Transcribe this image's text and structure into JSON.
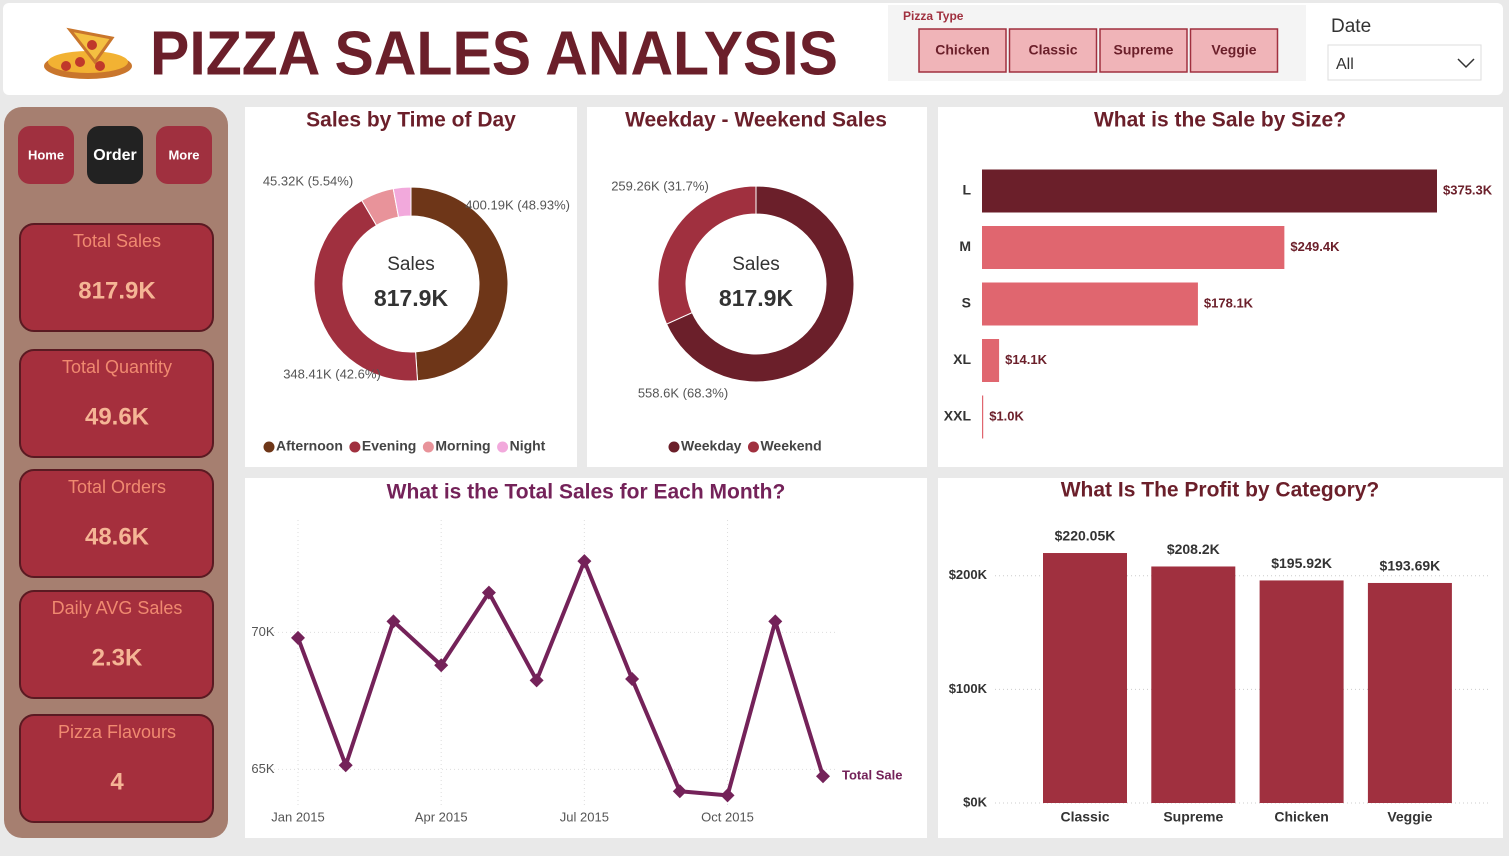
{
  "header": {
    "title": "PIZZA SALES ANALYSIS"
  },
  "filters": {
    "pizza_type": {
      "label": "Pizza Type",
      "options": [
        "Chicken",
        "Classic",
        "Supreme",
        "Veggie"
      ]
    },
    "date": {
      "label": "Date",
      "value": "All"
    }
  },
  "nav": [
    "Home",
    "Order",
    "More"
  ],
  "kpis": [
    {
      "label": "Total Sales",
      "value": "817.9K"
    },
    {
      "label": "Total Quantity",
      "value": "49.6K"
    },
    {
      "label": "Total Orders",
      "value": "48.6K"
    },
    {
      "label": "Daily AVG Sales",
      "value": "2.3K"
    },
    {
      "label": "Pizza Flavours",
      "value": "4"
    }
  ],
  "chart_data": [
    {
      "type": "donut",
      "title": "Sales by Time of Day",
      "center_label": "Sales",
      "center_value": "817.9K",
      "categories": [
        "Afternoon",
        "Evening",
        "Morning",
        "Night"
      ],
      "values": [
        400190,
        348410,
        45320,
        23980
      ],
      "value_labels": [
        "400.19K (48.93%)",
        "348.41K (42.6%)",
        "45.32K (5.54%)",
        null
      ],
      "colors": [
        "#6e3618",
        "#a0303f",
        "#e8939a",
        "#f2a9dc"
      ]
    },
    {
      "type": "donut",
      "title": "Weekday - Weekend Sales",
      "center_label": "Sales",
      "center_value": "817.9K",
      "categories": [
        "Weekday",
        "Weekend"
      ],
      "values": [
        558600,
        259260
      ],
      "value_labels": [
        "558.6K (68.3%)",
        "259.26K (31.7%)"
      ],
      "colors": [
        "#6b1f2a",
        "#a0303f"
      ]
    },
    {
      "type": "hbar",
      "title": "What is the Sale by Size?",
      "categories": [
        "L",
        "M",
        "S",
        "XL",
        "XXL"
      ],
      "values": [
        375300,
        249400,
        178100,
        14100,
        1000
      ],
      "value_labels": [
        "$375.3K",
        "$249.4K",
        "$178.1K",
        "$14.1K",
        "$1.0K"
      ],
      "colors": [
        "#6b1f2a",
        "#e0666f",
        "#e0666f",
        "#e0666f",
        "#e0666f"
      ]
    },
    {
      "type": "line",
      "title": "What is the Total Sales for Each Month?",
      "categories": [
        "Jan 2015",
        null,
        null,
        "Apr 2015",
        null,
        null,
        "Jul 2015",
        null,
        null,
        "Oct 2015",
        null,
        null
      ],
      "series": [
        {
          "name": "Total Sale",
          "color": "#742259",
          "values": [
            69800,
            65150,
            70400,
            68800,
            71450,
            68250,
            72600,
            68300,
            64200,
            64050,
            70400,
            64750
          ]
        }
      ],
      "ylim": [
        63700,
        74100
      ],
      "yticks": [
        {
          "value": 65000,
          "label": "65K"
        },
        {
          "value": 70000,
          "label": "70K"
        }
      ],
      "grid": true
    },
    {
      "type": "bar",
      "title": "What Is The Profit by Category?",
      "categories": [
        "Classic",
        "Supreme",
        "Chicken",
        "Veggie"
      ],
      "values": [
        220050,
        208200,
        195920,
        193690
      ],
      "value_labels": [
        "$220.05K",
        "$208.2K",
        "$195.92K",
        "$193.69K"
      ],
      "color": "#a0303f",
      "ylim": [
        0,
        250000
      ],
      "yticks": [
        {
          "value": 0,
          "label": "$0K"
        },
        {
          "value": 100000,
          "label": "$100K"
        },
        {
          "value": 200000,
          "label": "$200K"
        }
      ],
      "grid": true
    }
  ]
}
